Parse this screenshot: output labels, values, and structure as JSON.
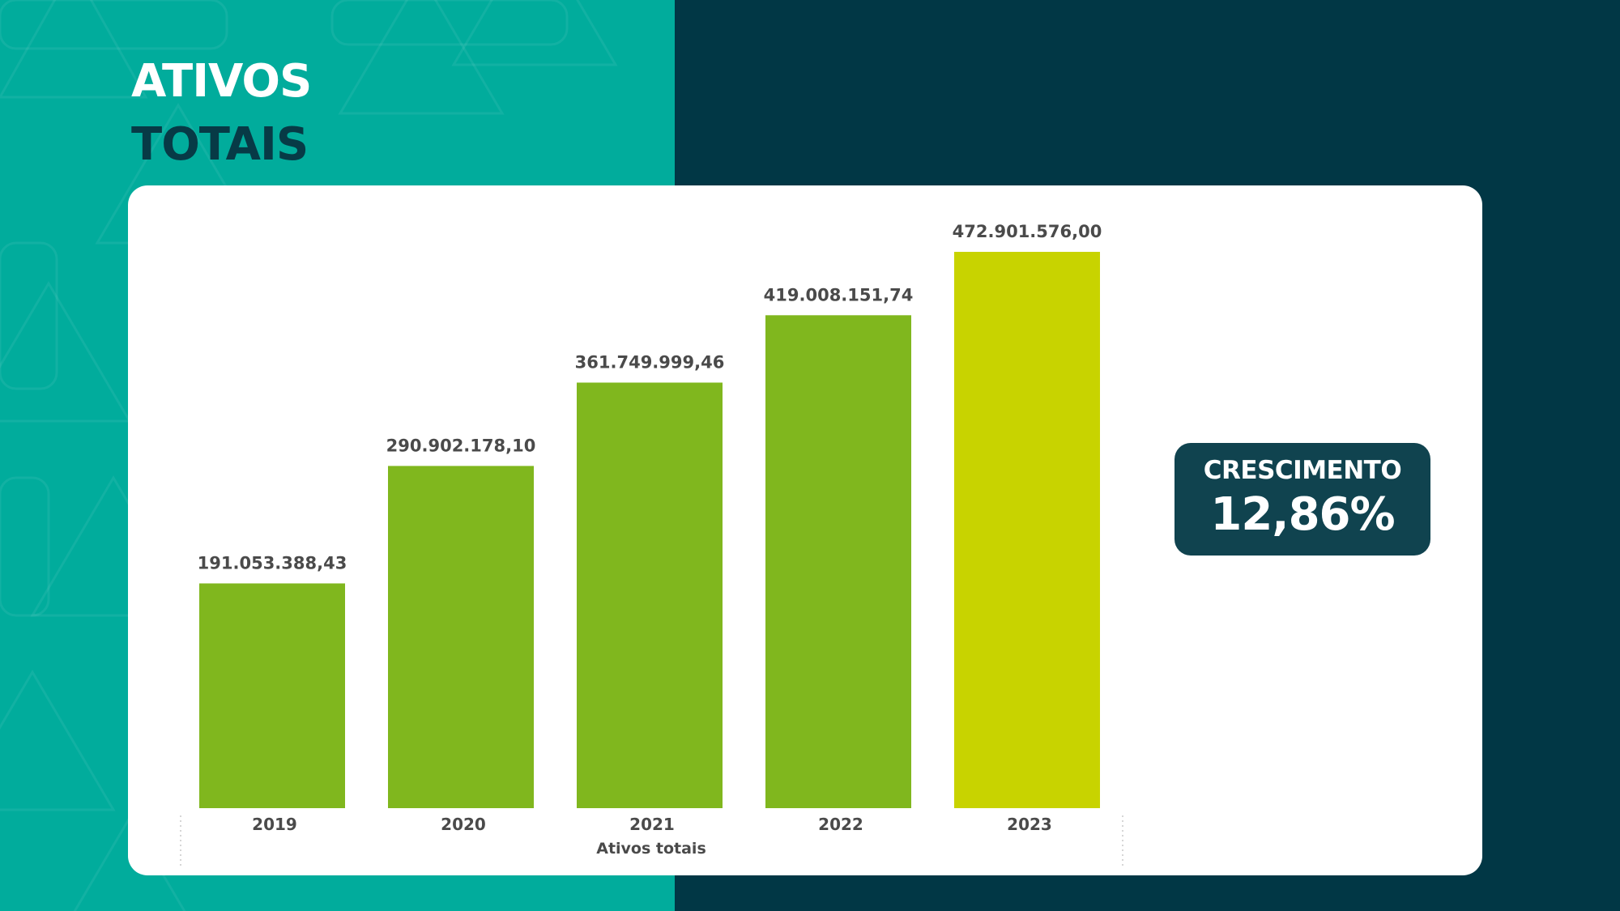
{
  "title": {
    "line1": "ATIVOS",
    "line2": "TOTAIS"
  },
  "colors": {
    "left_bg": "#01ac9c",
    "right_bg": "#013745",
    "bar": "#80b71e",
    "bar_highlight": "#c8d300",
    "badge_bg": "#10434f",
    "label_text": "#4a4a4a"
  },
  "badge": {
    "label": "CRESCIMENTO",
    "value": "12,86%"
  },
  "chart_data": {
    "type": "bar",
    "categories": [
      "2019",
      "2020",
      "2021",
      "2022",
      "2023"
    ],
    "values": [
      191053388.43,
      290902178.1,
      361749999.46,
      419008151.74,
      472901576.0
    ],
    "data_labels": [
      "191.053.388,43",
      "290.902.178,10",
      "361.749.999,46",
      "419.008.151,74",
      "472.901.576,00"
    ],
    "highlight_index": 4,
    "xlabel": "Ativos totais",
    "ylabel": "",
    "ylim": [
      0,
      472901576
    ],
    "grid": false,
    "legend": "none"
  }
}
